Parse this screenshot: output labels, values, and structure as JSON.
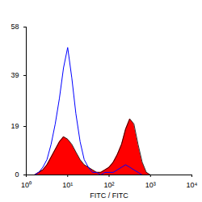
{
  "chart_data": {
    "type": "line",
    "x_label": "FITC / FITC",
    "log": "x",
    "x": [
      1.58,
      2.0,
      2.51,
      3.16,
      3.98,
      5.01,
      6.31,
      7.94,
      10,
      12.6,
      15.8,
      20,
      25.1,
      31.6,
      39.8,
      50.1,
      63.1,
      79.4,
      100,
      126,
      158,
      200,
      251,
      316,
      398,
      501,
      631,
      794,
      1000
    ],
    "series": [
      {
        "type": "area",
        "color": "#ff0000",
        "values": [
          0,
          1,
          2,
          4,
          7,
          10,
          13,
          15,
          14,
          12,
          9,
          6,
          4,
          3,
          2,
          1,
          1,
          2,
          3,
          5,
          8,
          12,
          18,
          22,
          20,
          12,
          5,
          1,
          0
        ]
      },
      {
        "type": "line",
        "color": "#0000ff",
        "values": [
          0,
          1,
          3,
          6,
          12,
          20,
          30,
          42,
          50,
          38,
          24,
          13,
          6,
          3,
          1,
          1,
          0,
          1,
          1,
          1,
          2,
          3,
          4,
          3,
          2,
          1,
          0,
          0,
          0
        ]
      }
    ],
    "xlim": [
      1,
      10000
    ],
    "xticks": [
      {
        "value": 1,
        "label": "10⁰"
      },
      {
        "value": 10,
        "label": "10¹"
      },
      {
        "value": 100,
        "label": "10²"
      },
      {
        "value": 1000,
        "label": "10³"
      },
      {
        "value": 10000,
        "label": "10⁴"
      }
    ],
    "ylim": [
      0,
      58
    ],
    "yticks": [
      0,
      19,
      39,
      58
    ]
  }
}
